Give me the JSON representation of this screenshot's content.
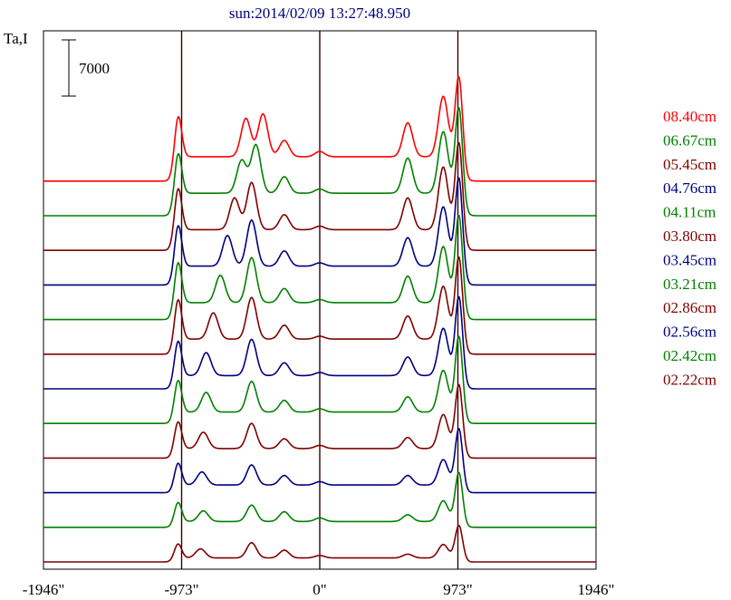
{
  "chart_data": {
    "type": "line",
    "title": "sun:2014/02/09 13:27:48.950",
    "ylabel": "Ta,I",
    "scale_bar_label": "7000",
    "xlim": [
      -1946,
      1946
    ],
    "x_ticks": [
      {
        "value": -1946,
        "label": "-1946\""
      },
      {
        "value": -973,
        "label": "-973\""
      },
      {
        "value": 0,
        "label": "0\""
      },
      {
        "value": 973,
        "label": "973\""
      },
      {
        "value": 1946,
        "label": "1946\""
      }
    ],
    "vertical_markers": [
      -973,
      0,
      973
    ],
    "offset_step": 7000,
    "series": [
      {
        "name": "02.22cm",
        "color": "#800000",
        "baseline": 0,
        "peaks": [
          [
            -1000,
            4000
          ],
          [
            -840,
            2600
          ],
          [
            -480,
            4000
          ],
          [
            -250,
            2300
          ],
          [
            0,
            1100
          ],
          [
            620,
            1400
          ],
          [
            870,
            3600
          ],
          [
            980,
            8000
          ]
        ]
      },
      {
        "name": "02.42cm",
        "color": "#008000",
        "baseline": 0,
        "peaks": [
          [
            -1000,
            5500
          ],
          [
            -820,
            3200
          ],
          [
            -480,
            4500
          ],
          [
            -250,
            3000
          ],
          [
            0,
            1600
          ],
          [
            620,
            2300
          ],
          [
            870,
            5500
          ],
          [
            980,
            12000
          ]
        ]
      },
      {
        "name": "02.56cm",
        "color": "#000080",
        "baseline": 0,
        "peaks": [
          [
            -1000,
            6500
          ],
          [
            -830,
            4000
          ],
          [
            -480,
            5600
          ],
          [
            -250,
            3200
          ],
          [
            0,
            1800
          ],
          [
            620,
            3200
          ],
          [
            870,
            6800
          ],
          [
            980,
            14000
          ]
        ]
      },
      {
        "name": "02.86cm",
        "color": "#800000",
        "baseline": 0,
        "peaks": [
          [
            -1000,
            8000
          ],
          [
            -820,
            5000
          ],
          [
            -480,
            7000
          ],
          [
            -250,
            3500
          ],
          [
            0,
            2000
          ],
          [
            620,
            3800
          ],
          [
            870,
            9000
          ],
          [
            980,
            16000
          ]
        ]
      },
      {
        "name": "03.21cm",
        "color": "#008000",
        "baseline": 0,
        "peaks": [
          [
            -1000,
            9500
          ],
          [
            -800,
            6000
          ],
          [
            -480,
            8500
          ],
          [
            -250,
            4200
          ],
          [
            0,
            2300
          ],
          [
            620,
            5000
          ],
          [
            870,
            11000
          ],
          [
            980,
            19000
          ]
        ]
      },
      {
        "name": "03.45cm",
        "color": "#000080",
        "baseline": 0,
        "peaks": [
          [
            -1000,
            10500
          ],
          [
            -800,
            7000
          ],
          [
            -480,
            10000
          ],
          [
            -250,
            4700
          ],
          [
            0,
            2500
          ],
          [
            620,
            6000
          ],
          [
            870,
            12500
          ],
          [
            980,
            20000
          ]
        ]
      },
      {
        "name": "03.80cm",
        "color": "#800000",
        "baseline": 0,
        "peaks": [
          [
            -1000,
            12000
          ],
          [
            -750,
            8000
          ],
          [
            -480,
            11500
          ],
          [
            -250,
            5200
          ],
          [
            0,
            2700
          ],
          [
            620,
            7300
          ],
          [
            870,
            14000
          ],
          [
            980,
            21000
          ]
        ]
      },
      {
        "name": "04.11cm",
        "color": "#008000",
        "baseline": 0,
        "peaks": [
          [
            -1000,
            12500
          ],
          [
            -700,
            8500
          ],
          [
            -480,
            12500
          ],
          [
            -250,
            5500
          ],
          [
            0,
            3000
          ],
          [
            620,
            8300
          ],
          [
            870,
            15000
          ],
          [
            980,
            22500
          ]
        ]
      },
      {
        "name": "04.76cm",
        "color": "#000080",
        "baseline": 0,
        "peaks": [
          [
            -1000,
            13000
          ],
          [
            -650,
            9500
          ],
          [
            -480,
            13000
          ],
          [
            -250,
            6000
          ],
          [
            0,
            3300
          ],
          [
            620,
            9000
          ],
          [
            870,
            16000
          ],
          [
            980,
            23000
          ]
        ]
      },
      {
        "name": "05.45cm",
        "color": "#800000",
        "baseline": 0,
        "peaks": [
          [
            -1000,
            13500
          ],
          [
            -600,
            10000
          ],
          [
            -480,
            13500
          ],
          [
            -250,
            6200
          ],
          [
            0,
            3600
          ],
          [
            620,
            10000
          ],
          [
            870,
            17000
          ],
          [
            980,
            23000
          ]
        ]
      },
      {
        "name": "06.67cm",
        "color": "#008000",
        "baseline": 0,
        "peaks": [
          [
            -1000,
            13500
          ],
          [
            -550,
            10500
          ],
          [
            -450,
            14000
          ],
          [
            -250,
            6800
          ],
          [
            0,
            4000
          ],
          [
            620,
            11000
          ],
          [
            870,
            17000
          ],
          [
            980,
            23000
          ]
        ]
      },
      {
        "name": "08.40cm",
        "color": "#FF0000",
        "baseline": 0,
        "peaks": [
          [
            -1000,
            14000
          ],
          [
            -520,
            12000
          ],
          [
            -400,
            13000
          ],
          [
            -250,
            7000
          ],
          [
            0,
            4500
          ],
          [
            620,
            11000
          ],
          [
            870,
            17000
          ],
          [
            980,
            22000
          ]
        ]
      }
    ]
  }
}
